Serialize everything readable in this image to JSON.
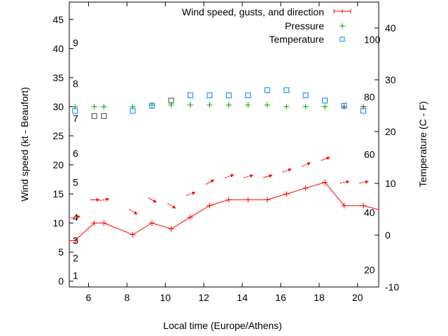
{
  "chart_data": {
    "type": "line",
    "xlabel": "Local time (Europe/Athens)",
    "ylabel": "Wind speed (kt - Beaufort)",
    "y2label": "Temperature (C - F)",
    "xlim": [
      5,
      21.1
    ],
    "ylim": [
      -1,
      48
    ],
    "y2lim": [
      -10,
      45
    ],
    "x_ticks": [
      6,
      8,
      10,
      12,
      14,
      16,
      18,
      20
    ],
    "y_ticks": [
      0,
      5,
      10,
      15,
      20,
      25,
      30,
      35,
      40,
      45
    ],
    "y2_ticks": [
      -10,
      0,
      10,
      20,
      30,
      40
    ],
    "beaufort_labels": [
      {
        "label": "1",
        "kt": 1
      },
      {
        "label": "2",
        "kt": 4
      },
      {
        "label": "3",
        "kt": 7
      },
      {
        "label": "4",
        "kt": 11
      },
      {
        "label": "5",
        "kt": 17
      },
      {
        "label": "6",
        "kt": 22
      },
      {
        "label": "7",
        "kt": 28
      },
      {
        "label": "8",
        "kt": 34
      },
      {
        "label": "9",
        "kt": 41
      }
    ],
    "fahrenheit_labels": [
      {
        "label": "20",
        "c": -6.7
      },
      {
        "label": "40",
        "c": 4.4
      },
      {
        "label": "60",
        "c": 15.6
      },
      {
        "label": "80",
        "c": 26.7
      },
      {
        "label": "100",
        "c": 37.8
      }
    ],
    "legend": {
      "placement": "top-right",
      "entries": [
        "Wind speed, gusts, and direction",
        "Pressure",
        "Temperature"
      ]
    },
    "colors": {
      "wind": "#ff0000",
      "pressure": "#00a000",
      "temperature": "#0080ff",
      "gray": "#404040"
    },
    "x": [
      5.3,
      6.3,
      6.8,
      8.3,
      9.3,
      10.3,
      11.3,
      12.3,
      13.3,
      14.3,
      15.3,
      16.3,
      17.3,
      18.3,
      19.3,
      20.3
    ],
    "series": [
      {
        "name": "Wind speed",
        "axis": "y",
        "values": [
          7,
          10,
          10,
          8,
          10,
          9,
          11,
          13,
          14,
          14,
          14,
          15,
          16,
          17,
          13,
          13
        ],
        "tail": {
          "x": 21.1,
          "y": 12.3
        },
        "head": {
          "x": 5,
          "y": 7
        }
      },
      {
        "name": "Gusts",
        "axis": "y",
        "values": [
          11,
          14,
          14,
          12,
          14,
          13,
          15,
          17,
          18,
          18,
          18,
          19,
          20,
          21,
          17,
          17
        ]
      },
      {
        "name": "Direction heading (deg)",
        "values": [
          80,
          90,
          80,
          120,
          120,
          120,
          70,
          60,
          70,
          75,
          75,
          70,
          65,
          70,
          80,
          80
        ]
      },
      {
        "name": "Pressure",
        "axis": "y",
        "values": [
          30,
          30,
          30,
          30,
          30.3,
          30.3,
          30.3,
          30.3,
          30.3,
          30.3,
          30.3,
          30,
          30,
          30,
          30,
          30
        ]
      },
      {
        "name": "Temperature",
        "axis": "y2",
        "values": [
          24,
          23,
          23,
          24,
          25,
          26,
          27,
          27,
          27,
          27,
          28,
          28,
          27,
          26,
          25,
          24
        ]
      }
    ]
  }
}
